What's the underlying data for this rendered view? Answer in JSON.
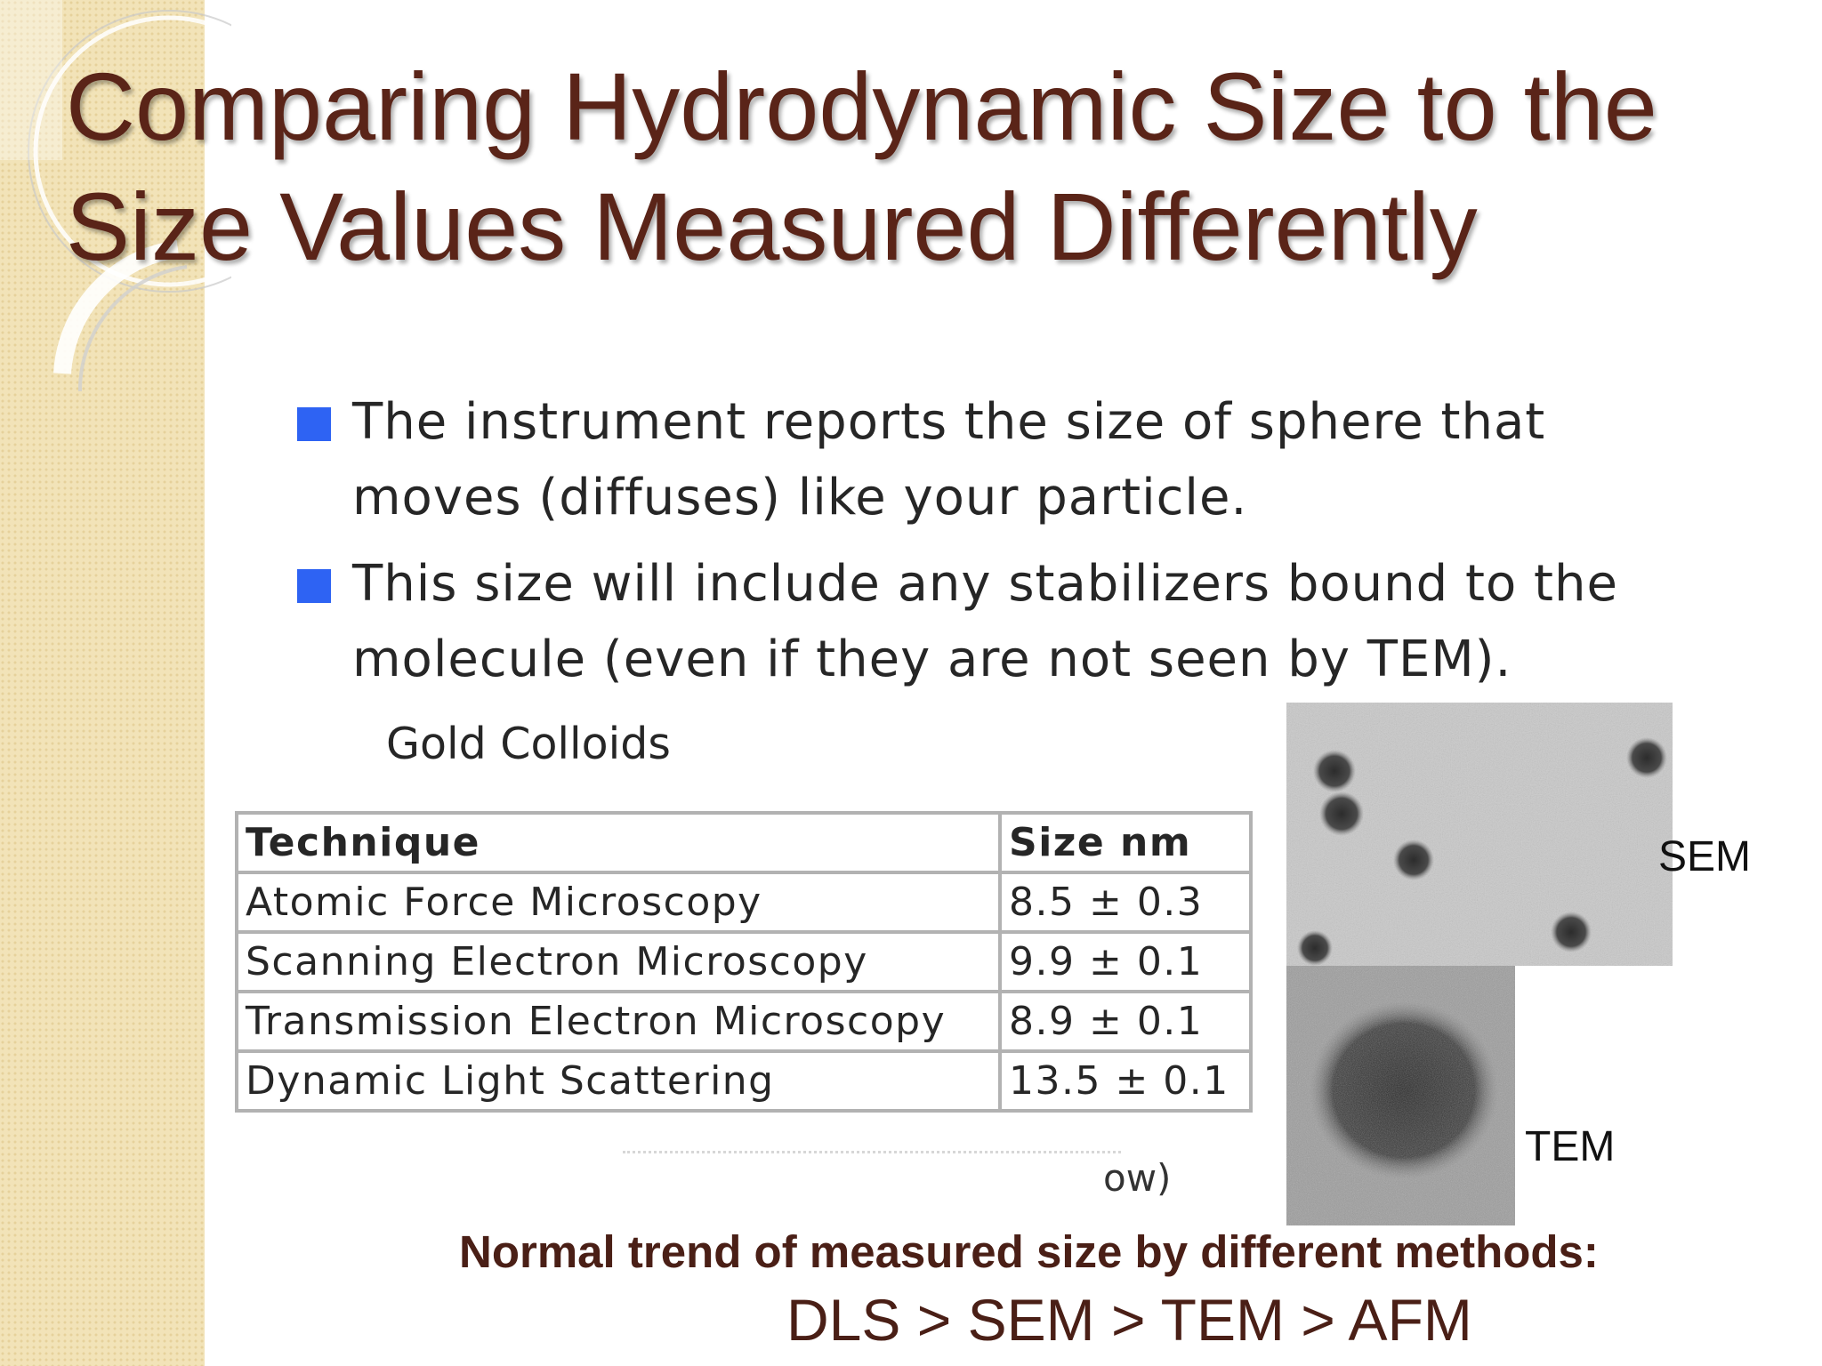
{
  "slide": {
    "title_lines": [
      "Comparing Hydrodynamic Size to the",
      "Size Values Measured Differently"
    ],
    "colors": {
      "title": "#5a2418",
      "bullet": "#2e63f3",
      "sidebar": "#f2e3b8"
    },
    "bullets": [
      {
        "icon": "square-bullet-icon",
        "lines": [
          "The instrument reports the size of sphere that",
          "moves (diffuses) like your particle."
        ]
      },
      {
        "icon": "square-bullet-icon",
        "lines": [
          "This size will include any stabilizers bound to the",
          "molecule (even if they are not seen by TEM)."
        ]
      }
    ],
    "table": {
      "caption": "Gold Colloids",
      "headers": [
        "Technique",
        "Size nm"
      ],
      "rows": [
        [
          "Atomic Force Microscopy",
          "8.5 ± 0.3"
        ],
        [
          "Scanning Electron Microscopy",
          "9.9 ± 0.1"
        ],
        [
          "Transmission Electron Microscopy",
          "8.9 ± 0.1"
        ],
        [
          "Dynamic Light Scattering",
          "13.5 ± 0.1"
        ]
      ],
      "cropped_text": "ow)"
    },
    "images": {
      "sem_label": "SEM",
      "tem_label": "TEM"
    },
    "trend_heading": "Normal trend of measured size by different methods:",
    "trend_order": "DLS > SEM > TEM > AFM"
  }
}
